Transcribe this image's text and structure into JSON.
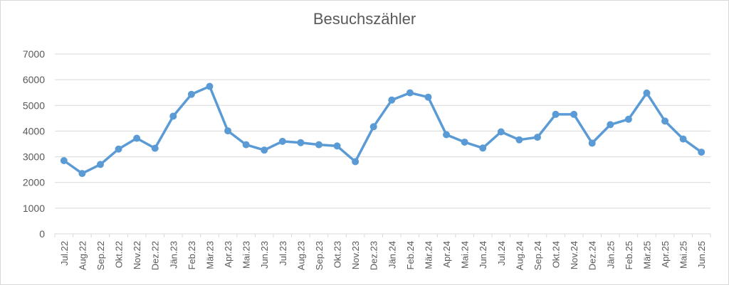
{
  "chart_data": {
    "type": "line",
    "title": "Besuchszähler",
    "xlabel": "",
    "ylabel": "",
    "ylim": [
      0,
      7000
    ],
    "yticks": [
      0,
      1000,
      2000,
      3000,
      4000,
      5000,
      6000,
      7000
    ],
    "grid": "horizontal",
    "legend": "none",
    "line_color": "#5b9bd5",
    "categories": [
      "Jul.22",
      "Aug.22",
      "Sep.22",
      "Okt.22",
      "Nov.22",
      "Dez.22",
      "Jän.23",
      "Feb.23",
      "Mär.23",
      "Apr.23",
      "Mai.23",
      "Jun.23",
      "Jul.23",
      "Aug.23",
      "Sep.23",
      "Okt.23",
      "Nov.23",
      "Dez.23",
      "Jän.24",
      "Feb.24",
      "Mär.24",
      "Apr.24",
      "Mai.24",
      "Jun.24",
      "Jul.24",
      "Aug.24",
      "Sep.24",
      "Okt.24",
      "Nov.24",
      "Dez.24",
      "Jän.25",
      "Feb.25",
      "Mär.25",
      "Apr.25",
      "Mai.25",
      "Jun.25"
    ],
    "series": [
      {
        "values": [
          2850,
          2350,
          2700,
          3300,
          3720,
          3330,
          4580,
          5430,
          5740,
          4010,
          3470,
          3260,
          3600,
          3550,
          3470,
          3420,
          2810,
          4170,
          5210,
          5490,
          5320,
          3860,
          3570,
          3340,
          3970,
          3660,
          3760,
          4650,
          4650,
          3530,
          4250,
          4460,
          5480,
          4390,
          3690,
          3180
        ]
      }
    ]
  }
}
